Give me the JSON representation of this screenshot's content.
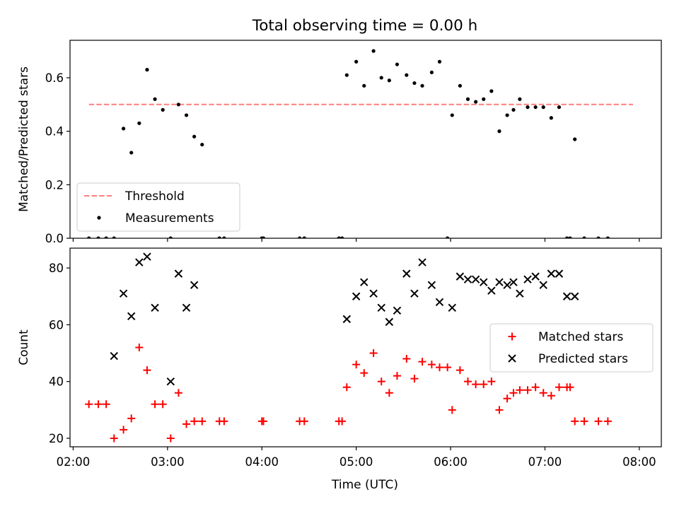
{
  "title": "Total observing time = 0.00 h",
  "xlabel": "Time (UTC)",
  "xticks": [
    "02:00",
    "03:00",
    "04:00",
    "05:00",
    "06:00",
    "07:00",
    "08:00"
  ],
  "colors": {
    "threshold": "#ff7f7f",
    "measurements": "#000000",
    "matched": "#ff0000",
    "predicted": "#000000"
  },
  "chart_data": [
    {
      "type": "scatter",
      "ylabel": "Matched/Predicted stars",
      "ylim": [
        0,
        0.74
      ],
      "xlim": [
        "01:58",
        "08:14"
      ],
      "yticks": [
        "0.0",
        "0.2",
        "0.4",
        "0.6"
      ],
      "legend": {
        "position": "lower-left",
        "entries": [
          "Threshold",
          "Measurements"
        ]
      },
      "threshold": {
        "name": "Threshold",
        "y": 0.5,
        "x": [
          "02:10",
          "07:56"
        ]
      },
      "series": [
        {
          "name": "Measurements",
          "x": [
            "02:10",
            "02:16",
            "02:21",
            "02:26",
            "02:32",
            "02:37",
            "02:42",
            "02:47",
            "02:52",
            "02:57",
            "03:02",
            "03:07",
            "03:12",
            "03:17",
            "03:22",
            "03:33",
            "03:36",
            "04:00",
            "04:01",
            "04:24",
            "04:27",
            "04:49",
            "04:51",
            "04:54",
            "05:00",
            "05:05",
            "05:11",
            "05:16",
            "05:21",
            "05:26",
            "05:32",
            "05:37",
            "05:42",
            "05:48",
            "05:53",
            "05:58",
            "06:01",
            "06:06",
            "06:11",
            "06:16",
            "06:21",
            "06:26",
            "06:31",
            "06:36",
            "06:40",
            "06:44",
            "06:49",
            "06:54",
            "06:59",
            "07:04",
            "07:09",
            "07:14",
            "07:16",
            "07:19",
            "07:25",
            "07:34",
            "07:40"
          ],
          "y": [
            0.0,
            0.0,
            0.0,
            0.0,
            0.41,
            0.32,
            0.43,
            0.63,
            0.52,
            0.48,
            0.0,
            0.5,
            0.46,
            0.38,
            0.35,
            0.0,
            0.0,
            0.0,
            0.0,
            0.0,
            0.0,
            0.0,
            0.0,
            0.61,
            0.66,
            0.57,
            0.7,
            0.6,
            0.59,
            0.65,
            0.61,
            0.58,
            0.57,
            0.62,
            0.66,
            0.0,
            0.46,
            0.57,
            0.52,
            0.51,
            0.52,
            0.55,
            0.4,
            0.46,
            0.48,
            0.52,
            0.49,
            0.49,
            0.49,
            0.45,
            0.49,
            0.0,
            0.0,
            0.37,
            0.0,
            0.0,
            0.0
          ]
        }
      ]
    },
    {
      "type": "scatter",
      "ylabel": "Count",
      "ylim": [
        17,
        87
      ],
      "xlim": [
        "01:58",
        "08:14"
      ],
      "yticks": [
        "20",
        "40",
        "60",
        "80"
      ],
      "legend": {
        "position": "center-right",
        "entries": [
          "Matched stars",
          "Predicted stars"
        ]
      },
      "series": [
        {
          "name": "Matched stars",
          "x": [
            "02:10",
            "02:16",
            "02:21",
            "02:26",
            "02:32",
            "02:37",
            "02:42",
            "02:47",
            "02:52",
            "02:57",
            "03:02",
            "03:07",
            "03:12",
            "03:17",
            "03:22",
            "03:33",
            "03:36",
            "04:00",
            "04:01",
            "04:24",
            "04:27",
            "04:49",
            "04:51",
            "04:54",
            "05:00",
            "05:05",
            "05:11",
            "05:16",
            "05:21",
            "05:26",
            "05:32",
            "05:37",
            "05:42",
            "05:48",
            "05:53",
            "05:58",
            "06:01",
            "06:06",
            "06:11",
            "06:16",
            "06:21",
            "06:26",
            "06:31",
            "06:36",
            "06:40",
            "06:44",
            "06:49",
            "06:54",
            "06:59",
            "07:04",
            "07:09",
            "07:14",
            "07:16",
            "07:19",
            "07:25",
            "07:34",
            "07:40"
          ],
          "y": [
            32,
            32,
            32,
            20,
            23,
            27,
            52,
            44,
            32,
            32,
            20,
            36,
            25,
            26,
            26,
            26,
            26,
            26,
            26,
            26,
            26,
            26,
            26,
            38,
            46,
            43,
            50,
            40,
            36,
            42,
            48,
            41,
            47,
            46,
            45,
            45,
            30,
            44,
            40,
            39,
            39,
            40,
            30,
            34,
            36,
            37,
            37,
            38,
            36,
            35,
            38,
            38,
            38,
            26,
            26,
            26,
            26
          ]
        },
        {
          "name": "Predicted stars",
          "x": [
            "02:26",
            "02:32",
            "02:37",
            "02:42",
            "02:47",
            "02:52",
            "03:02",
            "03:07",
            "03:12",
            "03:17",
            "04:54",
            "05:00",
            "05:05",
            "05:11",
            "05:16",
            "05:21",
            "05:26",
            "05:32",
            "05:37",
            "05:42",
            "05:48",
            "05:53",
            "06:01",
            "06:06",
            "06:11",
            "06:16",
            "06:21",
            "06:26",
            "06:31",
            "06:36",
            "06:40",
            "06:44",
            "06:49",
            "06:54",
            "06:59",
            "07:04",
            "07:09",
            "07:14",
            "07:19"
          ],
          "y": [
            49,
            71,
            63,
            82,
            84,
            66,
            40,
            78,
            66,
            74,
            62,
            70,
            75,
            71,
            66,
            61,
            65,
            78,
            71,
            82,
            74,
            68,
            66,
            77,
            76,
            76,
            75,
            72,
            75,
            74,
            75,
            71,
            76,
            77,
            74,
            78,
            78,
            70,
            70
          ]
        }
      ]
    }
  ]
}
